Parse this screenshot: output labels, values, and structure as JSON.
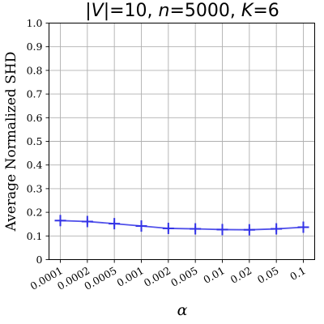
{
  "chart_data": {
    "type": "line",
    "title_parts": [
      "|",
      "V",
      "|=10, ",
      "n",
      "=5000, ",
      "K",
      "=6"
    ],
    "xlabel": "α",
    "ylabel": "Average Normalized SHD",
    "categories": [
      "0.0001",
      "0.0002",
      "0.0005",
      "0.001",
      "0.002",
      "0.005",
      "0.01",
      "0.02",
      "0.05",
      "0.1"
    ],
    "ylim": [
      0,
      1.0
    ],
    "yticks": [
      "0",
      "0.1",
      "0.2",
      "0.3",
      "0.4",
      "0.5",
      "0.6",
      "0.7",
      "0.8",
      "0.9",
      "1.0"
    ],
    "grid": true,
    "series": [
      {
        "values": [
          0.165,
          0.161,
          0.152,
          0.142,
          0.132,
          0.13,
          0.127,
          0.126,
          0.13,
          0.137
        ],
        "error": [
          0.012,
          0.012,
          0.012,
          0.012,
          0.012,
          0.012,
          0.012,
          0.012,
          0.012,
          0.012
        ],
        "color": "#3333e6",
        "marker": "+"
      }
    ]
  }
}
